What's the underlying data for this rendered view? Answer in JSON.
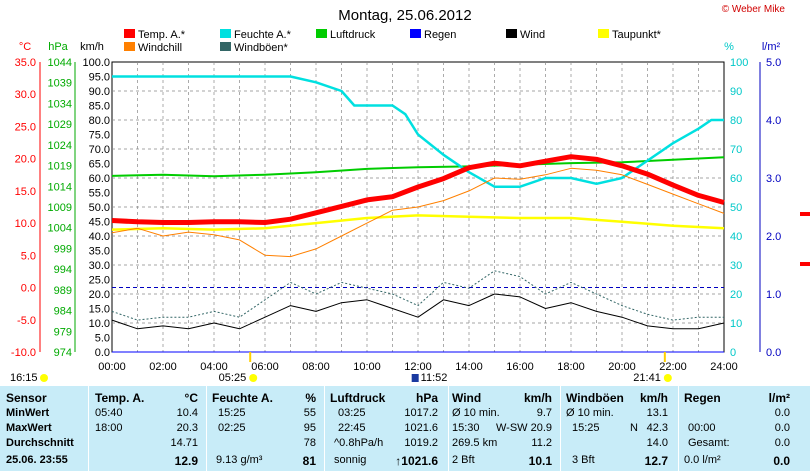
{
  "chart_data": {
    "type": "line",
    "title": "Montag, 25.06.2012",
    "copyright": "© Weber Mike",
    "x_tick_labels": [
      "00:00",
      "02:00",
      "04:00",
      "06:00",
      "08:00",
      "10:00",
      "12:00",
      "14:00",
      "16:00",
      "18:00",
      "20:00",
      "22:00",
      "24:00"
    ],
    "xlim": [
      0,
      24
    ],
    "axes": {
      "temp": {
        "label": "°C",
        "ticks": [
          "35.0",
          "30.0",
          "25.0",
          "20.0",
          "15.0",
          "10.0",
          "5.0",
          "0.0",
          "-5.0",
          "-10.0"
        ],
        "range": [
          -10,
          35
        ],
        "color": "#ff0000"
      },
      "pressure": {
        "label": "hPa",
        "ticks": [
          "1044",
          "1039",
          "1034",
          "1029",
          "1024",
          "1019",
          "1014",
          "1009",
          "1004",
          "999",
          "994",
          "989",
          "984",
          "979",
          "974"
        ],
        "range": [
          974,
          1044
        ],
        "color": "#00aa00"
      },
      "wind": {
        "label": "km/h",
        "ticks": [
          "100.0",
          "95.0",
          "90.0",
          "85.0",
          "80.0",
          "75.0",
          "70.0",
          "65.0",
          "60.0",
          "55.0",
          "50.0",
          "45.0",
          "40.0",
          "35.0",
          "30.0",
          "25.0",
          "20.0",
          "15.0",
          "10.0",
          "5.0",
          "0.0"
        ],
        "range": [
          0,
          100
        ],
        "color": "#000000"
      },
      "humidity": {
        "label": "%",
        "ticks": [
          "100",
          "90",
          "80",
          "70",
          "60",
          "50",
          "40",
          "30",
          "20",
          "10",
          "0"
        ],
        "range": [
          0,
          100
        ],
        "color": "#00c8c8"
      },
      "rain": {
        "label": "l/m²",
        "ticks": [
          "5.0",
          "4.0",
          "3.0",
          "2.0",
          "1.0",
          "0.0"
        ],
        "range": [
          0,
          5
        ],
        "color": "#0000c0"
      }
    },
    "legend": [
      {
        "name": "Temp. A.*",
        "color": "#ff0000"
      },
      {
        "name": "Feuchte A.*",
        "color": "#00e0e0"
      },
      {
        "name": "Luftdruck",
        "color": "#00cc00"
      },
      {
        "name": "Regen",
        "color": "#0000ff"
      },
      {
        "name": "Wind",
        "color": "#000000"
      },
      {
        "name": "Taupunkt*",
        "color": "#ffff00"
      },
      {
        "name": "Windchill",
        "color": "#ff8000"
      },
      {
        "name": "Windböen*",
        "color": "#336666"
      }
    ],
    "series": [
      {
        "name": "Temp. A.*",
        "axis": "temp",
        "x": [
          0,
          1,
          2,
          3,
          4,
          5,
          6,
          7,
          8,
          9,
          10,
          11,
          12,
          13,
          14,
          15,
          16,
          17,
          18,
          19,
          20,
          21,
          22,
          23,
          24
        ],
        "values": [
          10.4,
          10.2,
          10.1,
          10.1,
          10.2,
          10.2,
          10.1,
          10.6,
          11.6,
          12.6,
          13.6,
          14.1,
          15.6,
          16.9,
          18.6,
          19.3,
          18.9,
          19.6,
          20.3,
          19.9,
          18.9,
          17.6,
          15.9,
          14.3,
          13.2
        ]
      },
      {
        "name": "Windchill",
        "axis": "temp",
        "x": [
          0,
          1,
          2,
          3,
          4,
          5,
          6,
          7,
          8,
          9,
          10,
          11,
          12,
          13,
          14,
          15,
          16,
          17,
          18,
          19,
          20,
          21,
          22,
          23,
          24
        ],
        "values": [
          8.5,
          9.2,
          8.0,
          8.6,
          8.2,
          7.4,
          5.0,
          4.8,
          6.0,
          8.0,
          10.0,
          12.0,
          12.5,
          13.5,
          15.0,
          17.0,
          16.8,
          17.5,
          18.5,
          18.2,
          17.5,
          16.0,
          14.5,
          13.0,
          11.5
        ]
      },
      {
        "name": "Taupunkt*",
        "axis": "temp",
        "x": [
          0,
          2,
          4,
          6,
          8,
          10,
          12,
          14,
          16,
          18,
          20,
          22,
          24
        ],
        "values": [
          9.0,
          9.2,
          9.0,
          9.2,
          10.0,
          10.8,
          11.2,
          11.0,
          10.8,
          10.8,
          10.2,
          9.6,
          9.2
        ]
      },
      {
        "name": "Feuchte A.*",
        "axis": "humidity",
        "x": [
          0,
          2,
          4,
          5,
          6,
          7,
          8,
          9,
          9.5,
          11,
          11.5,
          12,
          13,
          14,
          15,
          16,
          17,
          18,
          19,
          20,
          21,
          22,
          23,
          23.5,
          24
        ],
        "values": [
          95,
          95,
          95,
          95,
          95,
          95,
          93,
          90,
          85,
          85,
          82,
          75,
          68,
          62,
          57,
          57,
          60,
          60,
          58,
          60,
          66,
          72,
          77,
          80,
          80
        ]
      },
      {
        "name": "Luftdruck",
        "axis": "pressure",
        "x": [
          0,
          2,
          4,
          6,
          8,
          10,
          12,
          14,
          16,
          18,
          20,
          22,
          24
        ],
        "values": [
          1016.5,
          1016.8,
          1016.4,
          1016.8,
          1017.4,
          1018.2,
          1018.6,
          1018.8,
          1019.2,
          1019.6,
          1019.8,
          1020.4,
          1021.0
        ]
      },
      {
        "name": "Wind",
        "axis": "wind",
        "x": [
          0,
          1,
          2,
          3,
          4,
          5,
          6,
          7,
          8,
          9,
          10,
          11,
          12,
          13,
          14,
          15,
          16,
          17,
          18,
          19,
          20,
          21,
          22,
          23,
          24
        ],
        "values": [
          11,
          8,
          9,
          8,
          10,
          8,
          12,
          16,
          14,
          17,
          18,
          15,
          12,
          18,
          16,
          20,
          19,
          15,
          17,
          14,
          12,
          9,
          8,
          8,
          10
        ]
      },
      {
        "name": "Windböen*",
        "axis": "wind",
        "x": [
          0,
          1,
          2,
          3,
          4,
          5,
          6,
          7,
          8,
          9,
          10,
          11,
          12,
          13,
          14,
          15,
          16,
          17,
          18,
          19,
          20,
          21,
          22,
          23,
          24
        ],
        "values": [
          14,
          11,
          12,
          12,
          14,
          12,
          18,
          24,
          20,
          24,
          22,
          20,
          16,
          24,
          22,
          28,
          26,
          20,
          24,
          20,
          16,
          13,
          11,
          12,
          12
        ]
      },
      {
        "name": "Regen",
        "axis": "rain",
        "x": [
          0,
          24
        ],
        "values": [
          0,
          0
        ]
      }
    ],
    "sun_markers": [
      {
        "label": "05:25",
        "hour": 5.42
      },
      {
        "label": "21:41",
        "hour": 21.68
      }
    ],
    "moon_marker": {
      "label": "11:52",
      "hour": 11.87
    },
    "sunrise_left": "16:15"
  },
  "table": {
    "sensor": {
      "header": "Sensor",
      "rows": [
        "MinWert",
        "MaxWert",
        "Durchschnitt",
        "25.06.  23:55"
      ]
    },
    "temp": {
      "header": "Temp. A.",
      "unit": "°C",
      "rows": [
        [
          "05:40",
          "10.4"
        ],
        [
          "18:00",
          "20.3"
        ],
        [
          "",
          "14.71"
        ],
        [
          "",
          "12.9"
        ]
      ]
    },
    "humidity": {
      "header": "Feuchte A.",
      "unit": "%",
      "rows": [
        [
          "15:25",
          "55"
        ],
        [
          "02:25",
          "95"
        ],
        [
          "",
          "78"
        ],
        [
          "9.13 g/m³",
          "81"
        ]
      ]
    },
    "pressure": {
      "header": "Luftdruck",
      "unit": "hPa",
      "rows": [
        [
          "03:25",
          "1017.2"
        ],
        [
          "22:45",
          "1021.6"
        ],
        [
          "^0.8hPa/h",
          "1019.2"
        ],
        [
          "sonnig",
          "↑1021.6"
        ]
      ]
    },
    "wind": {
      "header": "Wind",
      "unit": "km/h",
      "rows": [
        [
          "Ø 10 min.",
          "",
          "9.7"
        ],
        [
          "15:30",
          "W-SW",
          "20.9"
        ],
        [
          "269.5 km",
          "",
          "11.2"
        ],
        [
          "2 Bft",
          "",
          "10.1"
        ]
      ]
    },
    "gust": {
      "header": "Windböen",
      "unit": "km/h",
      "rows": [
        [
          "Ø 10 min.",
          "",
          "13.1"
        ],
        [
          "15:25",
          "N",
          "42.3"
        ],
        [
          "",
          "",
          "14.0"
        ],
        [
          "3 Bft",
          "",
          "12.7"
        ]
      ]
    },
    "rain": {
      "header": "Regen",
      "unit": "l/m²",
      "rows": [
        [
          "",
          "0.0"
        ],
        [
          "00:00",
          "0.0"
        ],
        [
          "Gesamt:",
          "0.0"
        ],
        [
          "0.0 l/m²",
          "0.0"
        ]
      ]
    }
  }
}
